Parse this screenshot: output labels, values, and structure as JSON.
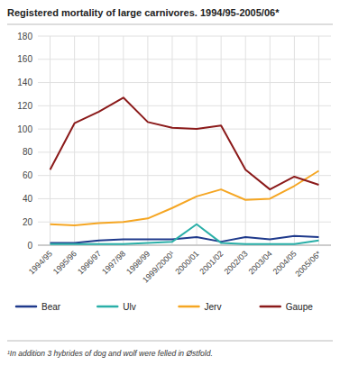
{
  "chart_data": {
    "type": "line",
    "title": "Registered mortality of large carnivores. 1994/95-2005/06*",
    "categories": [
      "1994/95",
      "1995/96",
      "1996/97",
      "1997/98",
      "1998/99",
      "1999/2000¹",
      "2000/01",
      "2001/02",
      "2002/03",
      "2003/04",
      "2004/05",
      "2005/06*"
    ],
    "series": [
      {
        "name": "Bear",
        "color": "#1f3a8c",
        "values": [
          2,
          2,
          4,
          5,
          5,
          5,
          7,
          3,
          7,
          5,
          8,
          7
        ]
      },
      {
        "name": "Ulv",
        "color": "#2aafa8",
        "values": [
          1,
          1,
          1,
          1,
          2,
          3,
          18,
          2,
          1,
          1,
          1,
          4
        ]
      },
      {
        "name": "Jerv",
        "color": "#f5a623",
        "values": [
          18,
          17,
          19,
          20,
          23,
          32,
          42,
          48,
          39,
          40,
          51,
          64
        ]
      },
      {
        "name": "Gaupe",
        "color": "#8b1a1a",
        "values": [
          65,
          105,
          115,
          127,
          106,
          101,
          100,
          103,
          65,
          48,
          59,
          52
        ]
      }
    ],
    "ylim": [
      0,
      180
    ],
    "yticks": [
      0,
      20,
      40,
      60,
      80,
      100,
      120,
      140,
      160,
      180
    ],
    "grid": true,
    "legend": "bottom",
    "annotations": [
      "¹In addition 3 hybrides of dog and wolf were felled in Østfold."
    ]
  }
}
